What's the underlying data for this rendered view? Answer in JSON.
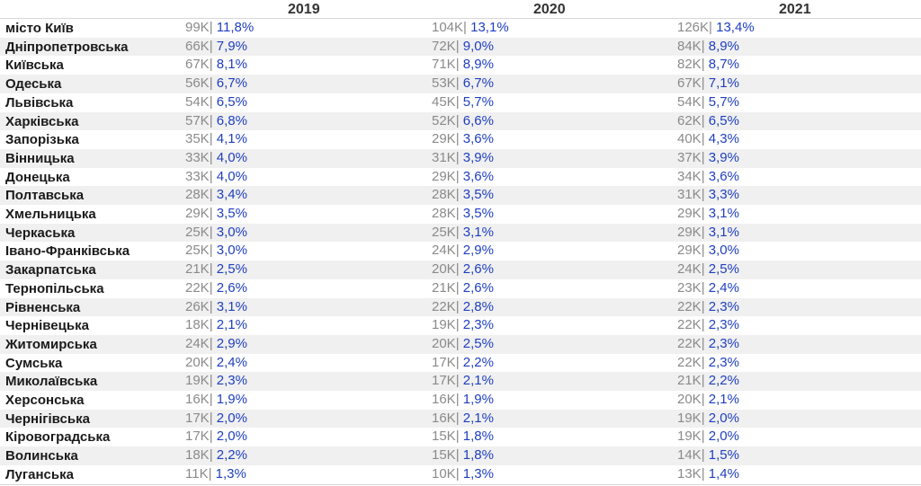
{
  "chart_data": {
    "type": "table",
    "columns": [
      "2019",
      "2020",
      "2021"
    ],
    "rows": [
      {
        "region": "місто Київ",
        "cells": [
          {
            "count": "99K",
            "pct": "11,8%"
          },
          {
            "count": "104K",
            "pct": "13,1%"
          },
          {
            "count": "126K",
            "pct": "13,4%"
          }
        ]
      },
      {
        "region": "Дніпропетровська",
        "cells": [
          {
            "count": "66K",
            "pct": "7,9%"
          },
          {
            "count": "72K",
            "pct": "9,0%"
          },
          {
            "count": "84K",
            "pct": "8,9%"
          }
        ]
      },
      {
        "region": "Київська",
        "cells": [
          {
            "count": "67K",
            "pct": "8,1%"
          },
          {
            "count": "71K",
            "pct": "8,9%"
          },
          {
            "count": "82K",
            "pct": "8,7%"
          }
        ]
      },
      {
        "region": "Одеська",
        "cells": [
          {
            "count": "56K",
            "pct": "6,7%"
          },
          {
            "count": "53K",
            "pct": "6,7%"
          },
          {
            "count": "67K",
            "pct": "7,1%"
          }
        ]
      },
      {
        "region": "Львівська",
        "cells": [
          {
            "count": "54K",
            "pct": "6,5%"
          },
          {
            "count": "45K",
            "pct": "5,7%"
          },
          {
            "count": "54K",
            "pct": "5,7%"
          }
        ]
      },
      {
        "region": "Харківська",
        "cells": [
          {
            "count": "57K",
            "pct": "6,8%"
          },
          {
            "count": "52K",
            "pct": "6,6%"
          },
          {
            "count": "62K",
            "pct": "6,5%"
          }
        ]
      },
      {
        "region": "Запорізька",
        "cells": [
          {
            "count": "35K",
            "pct": "4,1%"
          },
          {
            "count": "29K",
            "pct": "3,6%"
          },
          {
            "count": "40K",
            "pct": "4,3%"
          }
        ]
      },
      {
        "region": "Вінницька",
        "cells": [
          {
            "count": "33K",
            "pct": "4,0%"
          },
          {
            "count": "31K",
            "pct": "3,9%"
          },
          {
            "count": "37K",
            "pct": "3,9%"
          }
        ]
      },
      {
        "region": "Донецька",
        "cells": [
          {
            "count": "33K",
            "pct": "4,0%"
          },
          {
            "count": "29K",
            "pct": "3,6%"
          },
          {
            "count": "34K",
            "pct": "3,6%"
          }
        ]
      },
      {
        "region": "Полтавська",
        "cells": [
          {
            "count": "28K",
            "pct": "3,4%"
          },
          {
            "count": "28K",
            "pct": "3,5%"
          },
          {
            "count": "31K",
            "pct": "3,3%"
          }
        ]
      },
      {
        "region": "Хмельницька",
        "cells": [
          {
            "count": "29K",
            "pct": "3,5%"
          },
          {
            "count": "28K",
            "pct": "3,5%"
          },
          {
            "count": "29K",
            "pct": "3,1%"
          }
        ]
      },
      {
        "region": "Черкаська",
        "cells": [
          {
            "count": "25K",
            "pct": "3,0%"
          },
          {
            "count": "25K",
            "pct": "3,1%"
          },
          {
            "count": "29K",
            "pct": "3,1%"
          }
        ]
      },
      {
        "region": "Івано-Франківська",
        "cells": [
          {
            "count": "25K",
            "pct": "3,0%"
          },
          {
            "count": "24K",
            "pct": "2,9%"
          },
          {
            "count": "29K",
            "pct": "3,0%"
          }
        ]
      },
      {
        "region": "Закарпатська",
        "cells": [
          {
            "count": "21K",
            "pct": "2,5%"
          },
          {
            "count": "20K",
            "pct": "2,6%"
          },
          {
            "count": "24K",
            "pct": "2,5%"
          }
        ]
      },
      {
        "region": "Тернопільська",
        "cells": [
          {
            "count": "22K",
            "pct": "2,6%"
          },
          {
            "count": "21K",
            "pct": "2,6%"
          },
          {
            "count": "23K",
            "pct": "2,4%"
          }
        ]
      },
      {
        "region": "Рівненська",
        "cells": [
          {
            "count": "26K",
            "pct": "3,1%"
          },
          {
            "count": "22K",
            "pct": "2,8%"
          },
          {
            "count": "22K",
            "pct": "2,3%"
          }
        ]
      },
      {
        "region": "Чернівецька",
        "cells": [
          {
            "count": "18K",
            "pct": "2,1%"
          },
          {
            "count": "19K",
            "pct": "2,3%"
          },
          {
            "count": "22K",
            "pct": "2,3%"
          }
        ]
      },
      {
        "region": "Житомирська",
        "cells": [
          {
            "count": "24K",
            "pct": "2,9%"
          },
          {
            "count": "20K",
            "pct": "2,5%"
          },
          {
            "count": "22K",
            "pct": "2,3%"
          }
        ]
      },
      {
        "region": "Сумська",
        "cells": [
          {
            "count": "20K",
            "pct": "2,4%"
          },
          {
            "count": "17K",
            "pct": "2,2%"
          },
          {
            "count": "22K",
            "pct": "2,3%"
          }
        ]
      },
      {
        "region": "Миколаївська",
        "cells": [
          {
            "count": "19K",
            "pct": "2,3%"
          },
          {
            "count": "17K",
            "pct": "2,1%"
          },
          {
            "count": "21K",
            "pct": "2,2%"
          }
        ]
      },
      {
        "region": "Херсонська",
        "cells": [
          {
            "count": "16K",
            "pct": "1,9%"
          },
          {
            "count": "16K",
            "pct": "1,9%"
          },
          {
            "count": "20K",
            "pct": "2,1%"
          }
        ]
      },
      {
        "region": "Чернігівська",
        "cells": [
          {
            "count": "17K",
            "pct": "2,0%"
          },
          {
            "count": "16K",
            "pct": "2,1%"
          },
          {
            "count": "19K",
            "pct": "2,0%"
          }
        ]
      },
      {
        "region": "Кіровоградська",
        "cells": [
          {
            "count": "17K",
            "pct": "2,0%"
          },
          {
            "count": "15K",
            "pct": "1,8%"
          },
          {
            "count": "19K",
            "pct": "2,0%"
          }
        ]
      },
      {
        "region": "Волинська",
        "cells": [
          {
            "count": "18K",
            "pct": "2,2%"
          },
          {
            "count": "15K",
            "pct": "1,8%"
          },
          {
            "count": "14K",
            "pct": "1,5%"
          }
        ]
      },
      {
        "region": "Луганська",
        "cells": [
          {
            "count": "11K",
            "pct": "1,3%"
          },
          {
            "count": "10K",
            "pct": "1,3%"
          },
          {
            "count": "13K",
            "pct": "1,4%"
          }
        ]
      }
    ]
  },
  "colors": {
    "count": "#8a8a8a",
    "percent": "#1f3fbf",
    "stripe": "#f0f0f0"
  }
}
